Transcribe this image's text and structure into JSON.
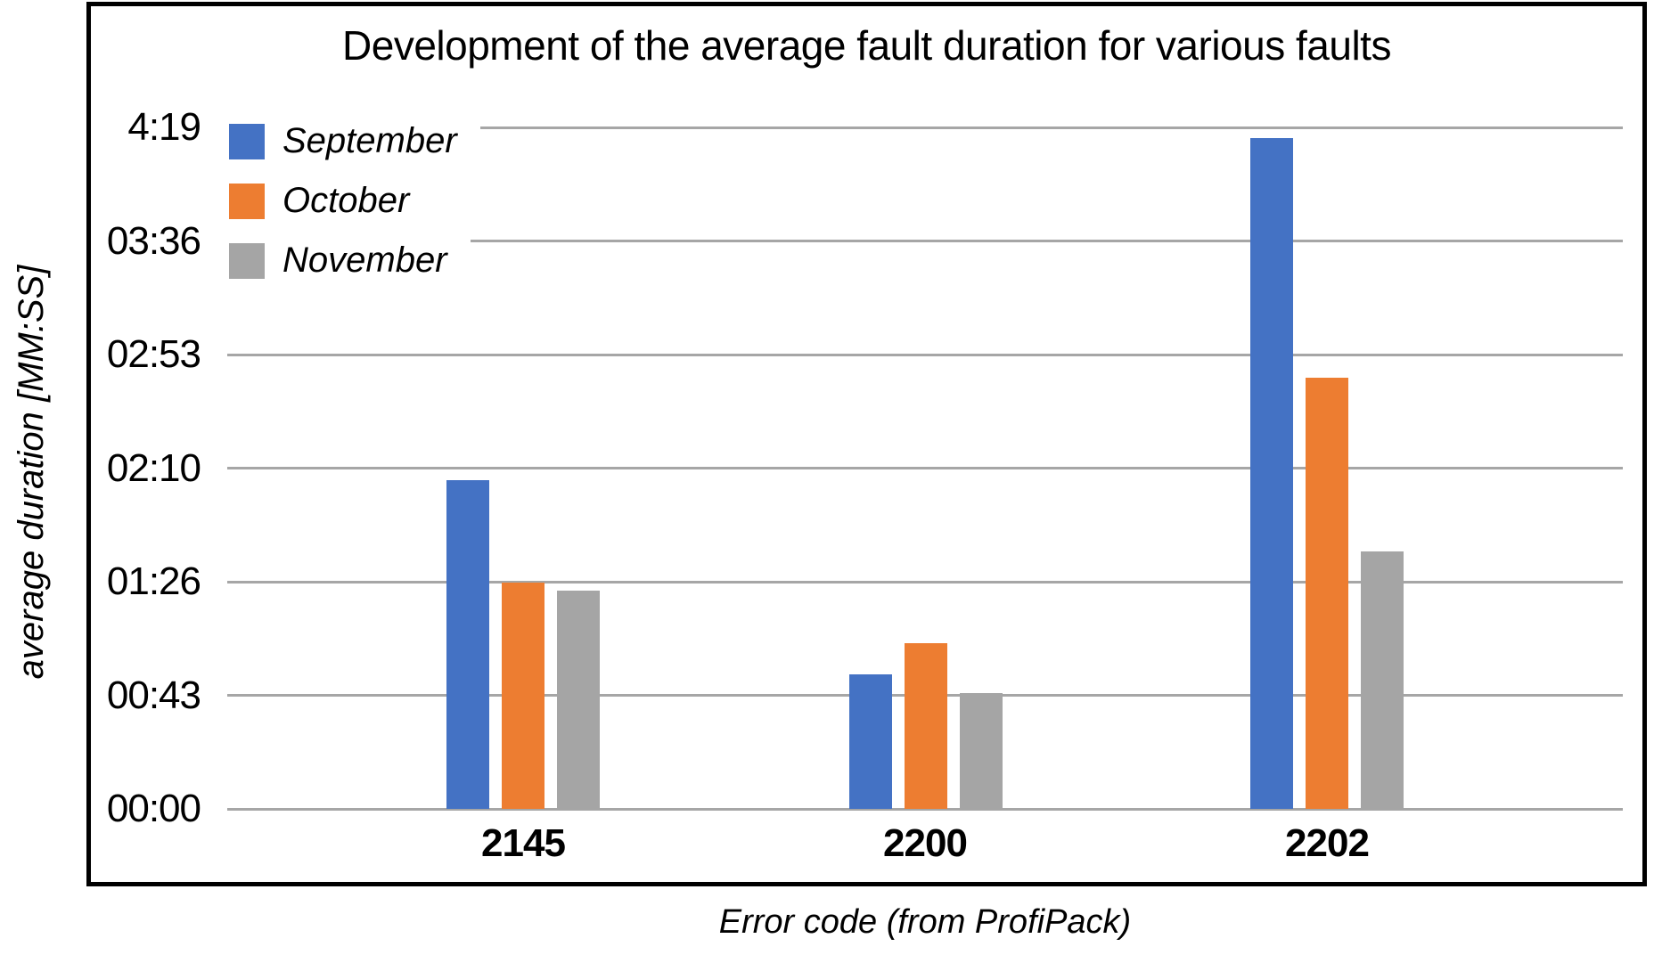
{
  "chart_data": {
    "type": "bar",
    "title": "Development of the average fault duration for various faults",
    "xlabel": "Error code (from ProfiPack)",
    "ylabel": "average duration [MM:SS]",
    "categories": [
      "2145",
      "2200",
      "2202"
    ],
    "series": [
      {
        "name": "September",
        "color": "#4472C4",
        "values_seconds": [
          125,
          51,
          255
        ],
        "values_mmss": [
          "02:05",
          "00:51",
          "04:15"
        ]
      },
      {
        "name": "October",
        "color": "#ED7D31",
        "values_seconds": [
          86,
          63,
          164
        ],
        "values_mmss": [
          "01:26",
          "01:03",
          "02:44"
        ]
      },
      {
        "name": "November",
        "color": "#A5A5A5",
        "values_seconds": [
          83,
          44,
          98
        ],
        "values_mmss": [
          "01:23",
          "00:44",
          "01:38"
        ]
      }
    ],
    "y_axis": {
      "tick_labels": [
        "00:00",
        "00:43",
        "01:26",
        "02:10",
        "02:53",
        "03:36",
        "4:19"
      ],
      "tick_seconds": [
        0,
        43,
        86,
        130,
        173,
        216,
        259
      ],
      "min_seconds": 0,
      "max_seconds": 259
    },
    "legend_position": "top-left",
    "grid": "horizontal",
    "colors": {
      "gridline": "#A6A6A6",
      "frame_border": "#000000",
      "text": "#000000",
      "background": "#FFFFFF"
    }
  }
}
